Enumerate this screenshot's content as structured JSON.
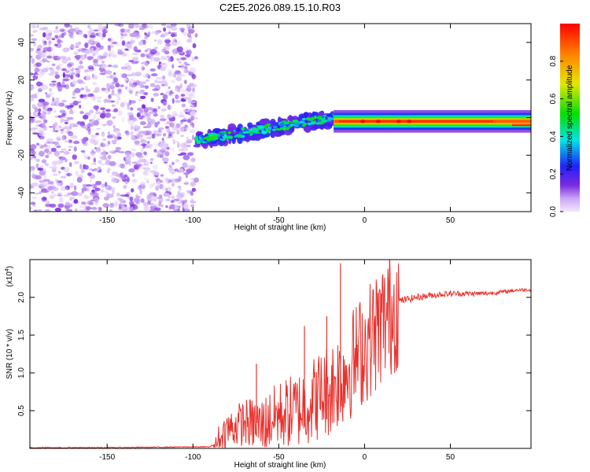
{
  "title": "C2E5.2026.089.15.10.R03",
  "chart_data": [
    {
      "type": "heatmap",
      "xlabel": "Height of straight line (km)",
      "ylabel": "Frequency (Hz)",
      "xlim": [
        -195,
        97
      ],
      "ylim": [
        -50,
        50
      ],
      "xticks": [
        -150,
        -100,
        -50,
        0,
        50
      ],
      "yticks": [
        -40,
        -20,
        0,
        20,
        40
      ],
      "colorbar": {
        "label": "Normalized spectral amplitude",
        "range": [
          0,
          1
        ],
        "ticks": [
          0.0,
          0.2,
          0.4,
          0.6,
          0.8
        ]
      },
      "regions": [
        {
          "description": "broadband noise",
          "x_range": [
            -195,
            -98
          ],
          "y_range": [
            -50,
            50
          ],
          "amplitude": 0.05
        },
        {
          "description": "ramping signal",
          "x_range": [
            -98,
            -18
          ],
          "y_from": -12,
          "y_to": 0,
          "amplitude": 0.3
        },
        {
          "description": "steady tone",
          "x_range": [
            -18,
            97
          ],
          "y": -2,
          "amplitude": 0.95
        }
      ]
    },
    {
      "type": "line",
      "xlabel": "Height of straight line (km)",
      "ylabel": "SNR (10 * v/v)",
      "y_multiplier": "(x10",
      "y_multiplier_exp": "4",
      "y_multiplier_close": ")",
      "xlim": [
        -195,
        97
      ],
      "ylim": [
        0,
        2.5
      ],
      "xticks": [
        -150,
        -100,
        -50,
        0,
        50
      ],
      "yticks": [
        0.5,
        1.0,
        1.5,
        2.0
      ],
      "color": "#e8302c",
      "series": [
        {
          "name": "SNR",
          "x": [
            -195,
            -150,
            -100,
            -90,
            -85,
            -80,
            -70,
            -60,
            -50,
            -40,
            -30,
            -20,
            -10,
            0,
            10,
            20,
            30,
            40,
            50,
            60,
            70,
            80,
            90,
            97
          ],
          "y": [
            0.01,
            0.01,
            0.02,
            0.02,
            0.1,
            0.25,
            0.35,
            0.3,
            0.45,
            0.5,
            0.65,
            0.8,
            1.05,
            1.35,
            1.65,
            1.95,
            2.0,
            2.03,
            2.05,
            2.05,
            2.05,
            2.07,
            2.1,
            2.1
          ]
        }
      ],
      "spikes": [
        {
          "x": -63,
          "y": 1.12
        },
        {
          "x": -35,
          "y": 1.62
        },
        {
          "x": -22,
          "y": 1.75
        },
        {
          "x": -14,
          "y": 2.45
        }
      ]
    }
  ]
}
